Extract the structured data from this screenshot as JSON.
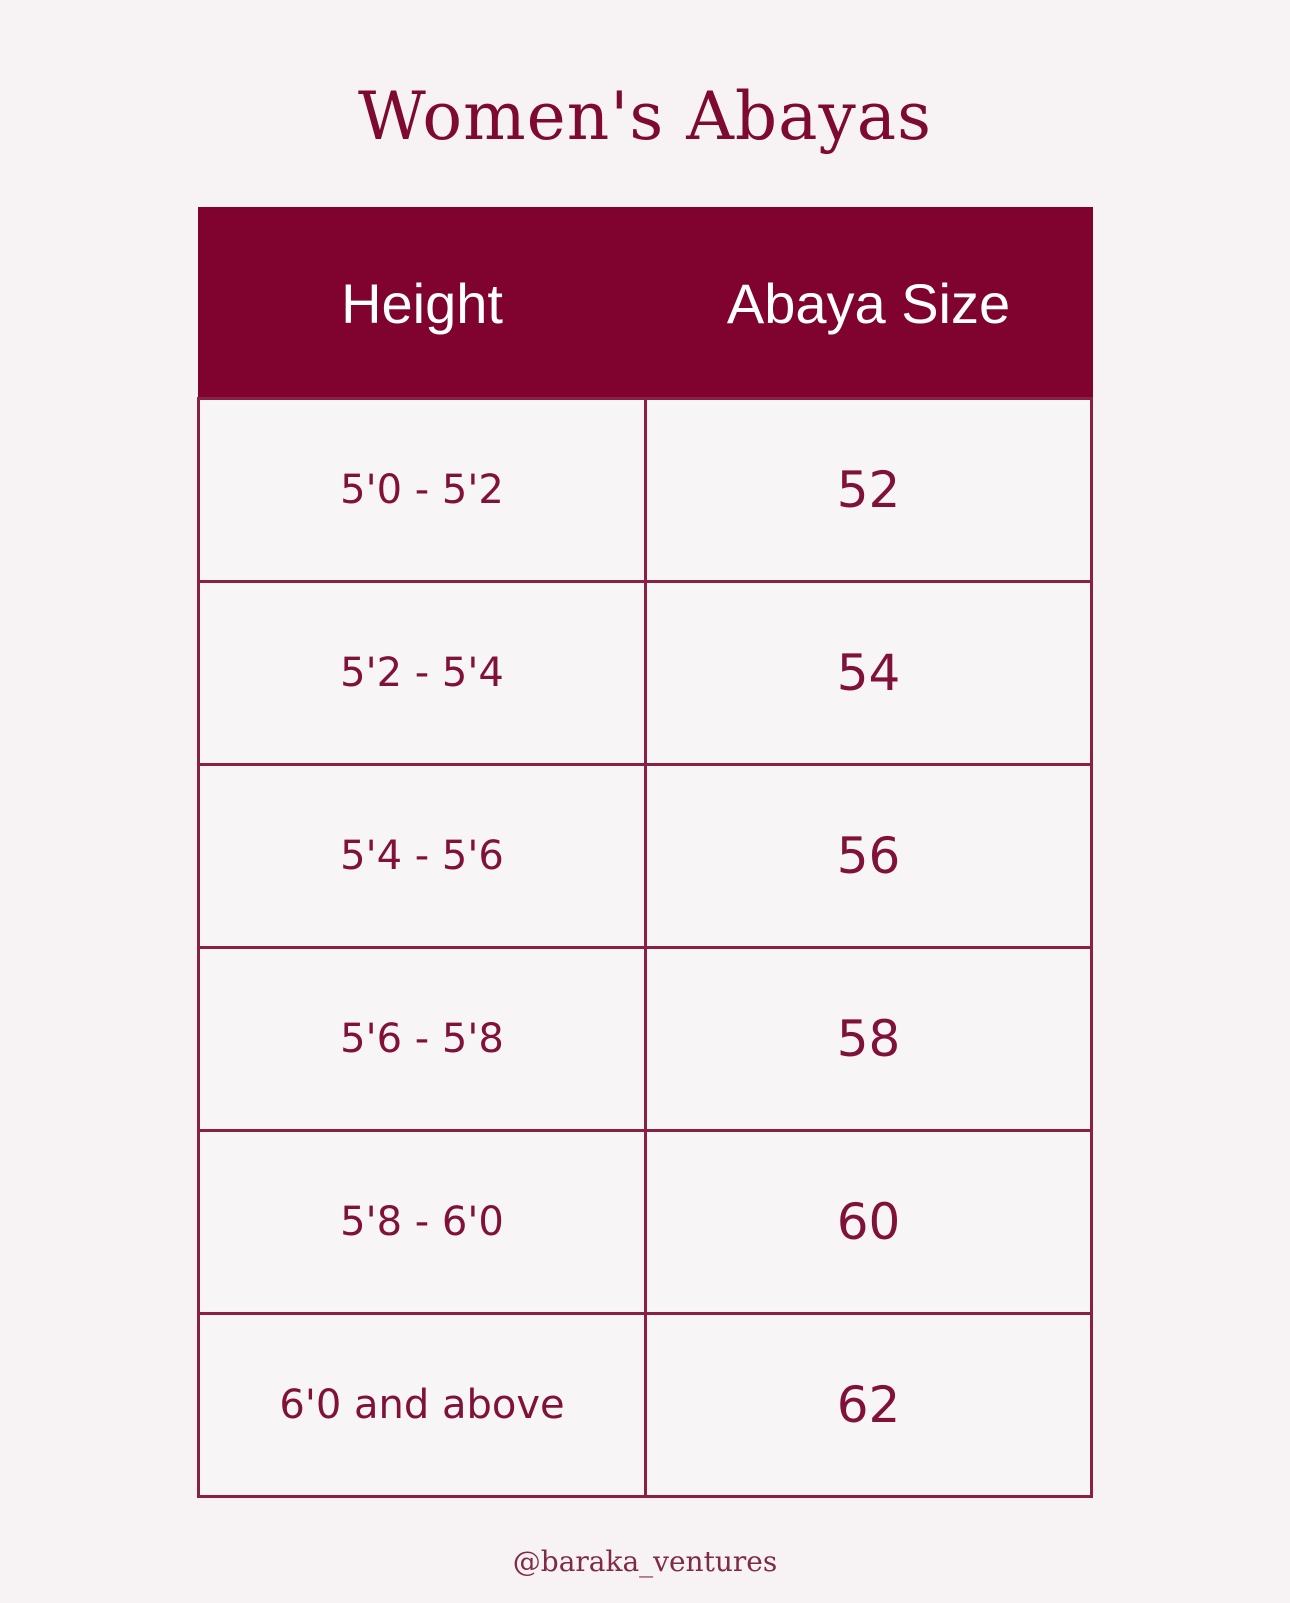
{
  "title": "Women's Abayas",
  "table": {
    "headers": [
      "Height",
      "Abaya Size"
    ],
    "rows": [
      {
        "height": "5'0 - 5'2",
        "size": "52"
      },
      {
        "height": "5'2 - 5'4",
        "size": "54"
      },
      {
        "height": "5'4 - 5'6",
        "size": "56"
      },
      {
        "height": "5'6 - 5'8",
        "size": "58"
      },
      {
        "height": "5'8 - 6'0",
        "size": "60"
      },
      {
        "height": "6'0 and above",
        "size": "62"
      }
    ]
  },
  "footer": "@baraka_ventures",
  "colors": {
    "accent": "#80032f",
    "background": "#f7f3f4"
  }
}
